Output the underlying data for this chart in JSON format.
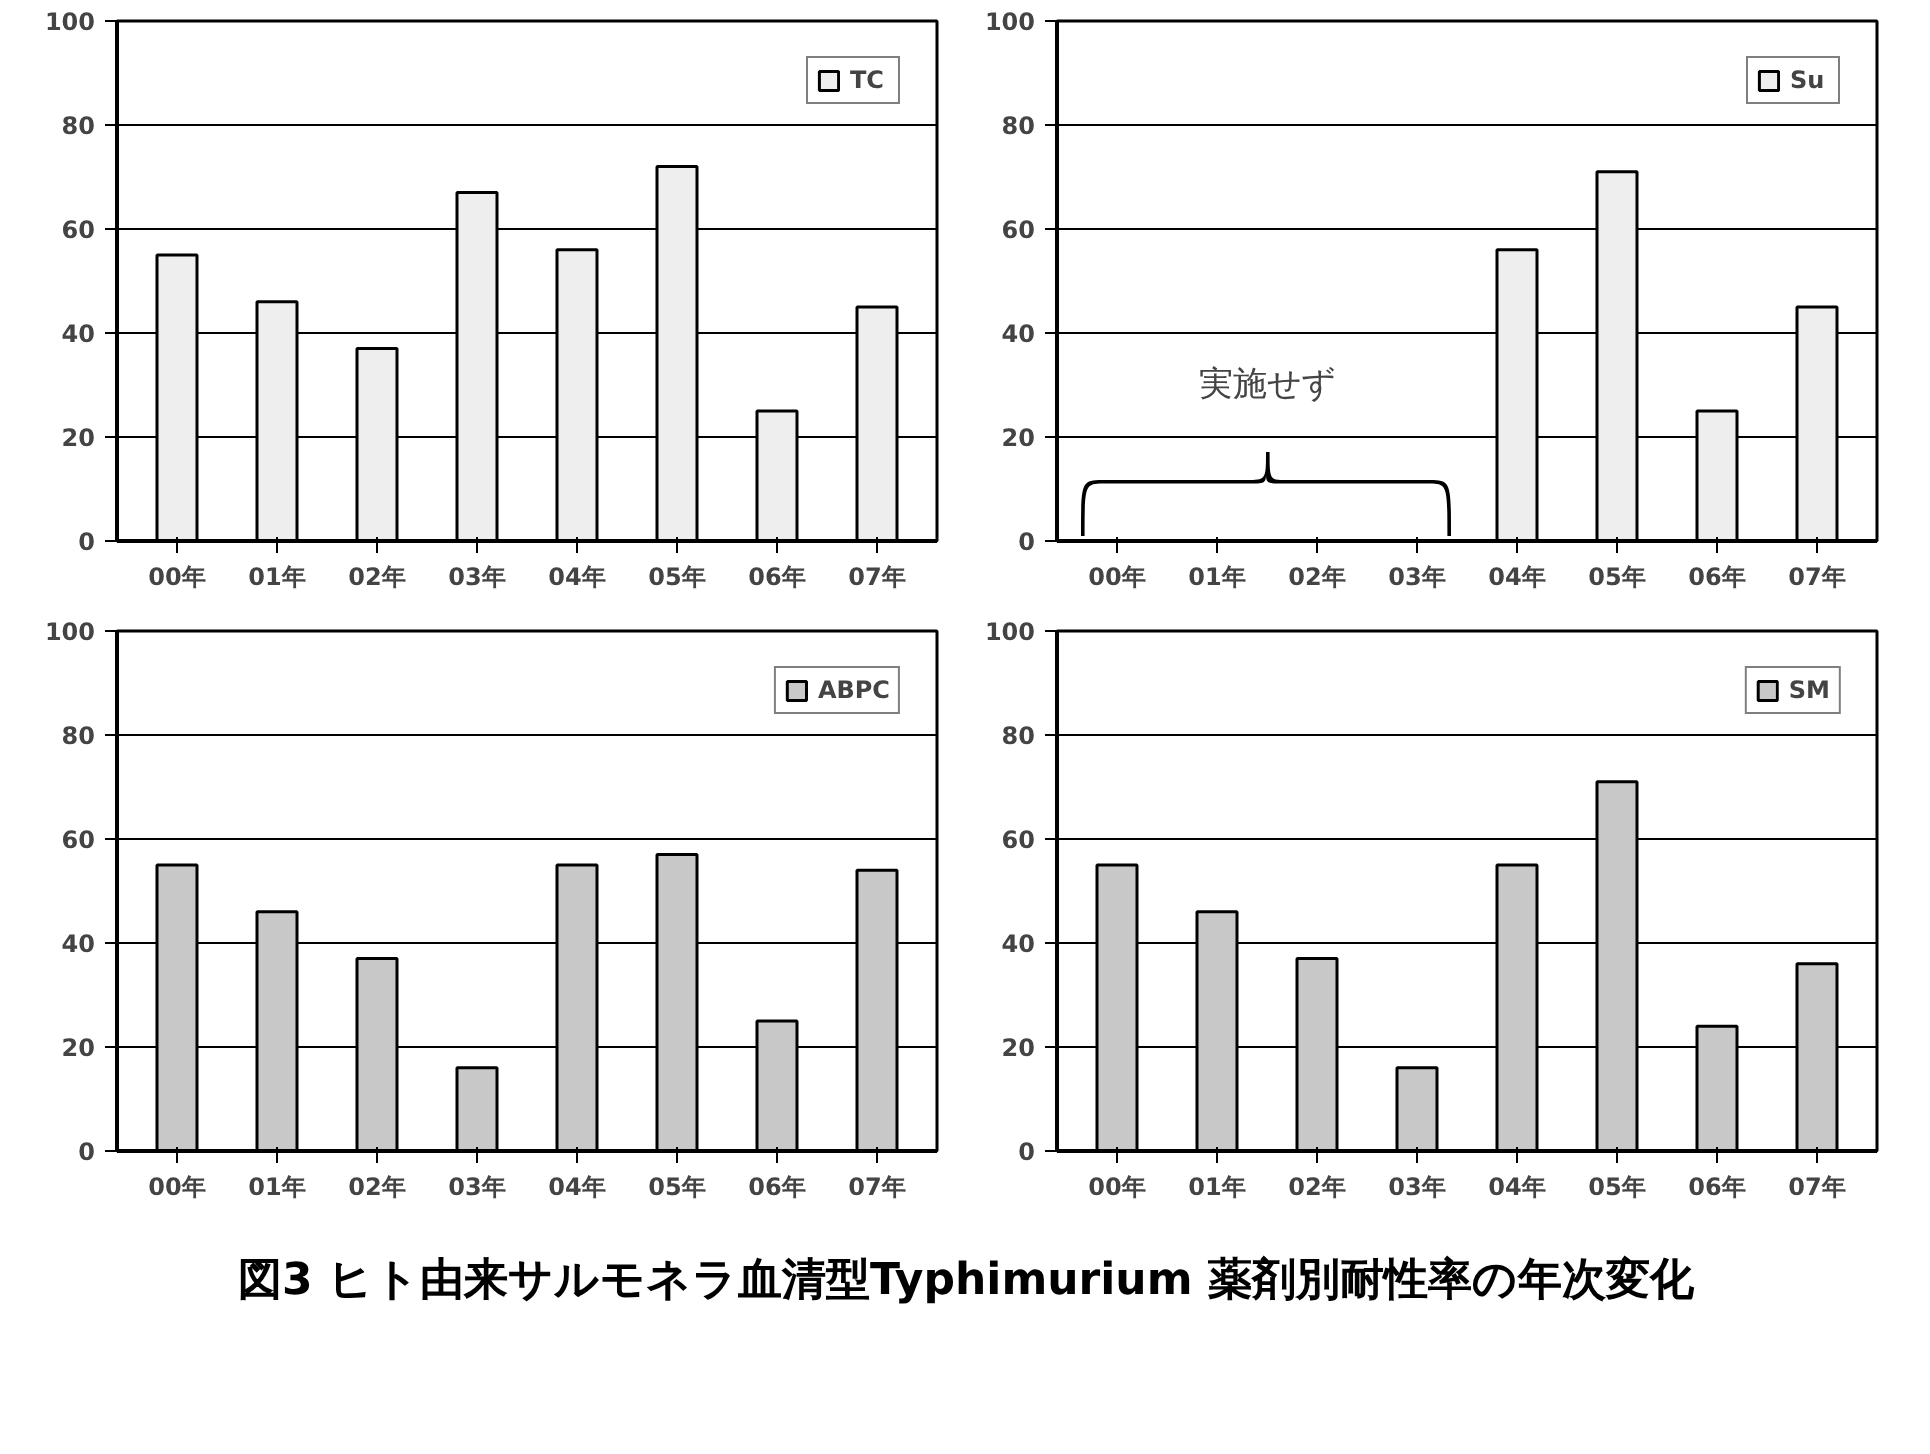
{
  "chart_data": [
    {
      "type": "bar",
      "categories": [
        "00年",
        "01年",
        "02年",
        "03年",
        "04年",
        "05年",
        "06年",
        "07年"
      ],
      "series": [
        {
          "name": "TC",
          "color": "#eeeeee",
          "values": [
            55,
            46,
            37,
            67,
            56,
            72,
            25,
            45
          ]
        }
      ],
      "ylim": [
        0,
        100
      ],
      "yticks": [
        0,
        20,
        40,
        60,
        80,
        100
      ],
      "grid": "y",
      "legend": "top right"
    },
    {
      "type": "bar",
      "categories": [
        "00年",
        "01年",
        "02年",
        "03年",
        "04年",
        "05年",
        "06年",
        "07年"
      ],
      "series": [
        {
          "name": "Su",
          "color": "#eeeeee",
          "values": [
            null,
            null,
            null,
            null,
            56,
            71,
            25,
            45
          ]
        }
      ],
      "ylim": [
        0,
        100
      ],
      "yticks": [
        0,
        20,
        40,
        60,
        80,
        100
      ],
      "grid": "y",
      "legend": "top right",
      "annotations": [
        "実施せず"
      ]
    },
    {
      "type": "bar",
      "categories": [
        "00年",
        "01年",
        "02年",
        "03年",
        "04年",
        "05年",
        "06年",
        "07年"
      ],
      "series": [
        {
          "name": "ABPC",
          "color": "#c8c8c8",
          "values": [
            55,
            46,
            37,
            16,
            55,
            57,
            25,
            54
          ]
        }
      ],
      "ylim": [
        0,
        100
      ],
      "yticks": [
        0,
        20,
        40,
        60,
        80,
        100
      ],
      "grid": "y",
      "legend": "top right"
    },
    {
      "type": "bar",
      "categories": [
        "00年",
        "01年",
        "02年",
        "03年",
        "04年",
        "05年",
        "06年",
        "07年"
      ],
      "series": [
        {
          "name": "SM",
          "color": "#c8c8c8",
          "values": [
            55,
            46,
            37,
            16,
            55,
            71,
            24,
            36
          ]
        }
      ],
      "ylim": [
        0,
        100
      ],
      "yticks": [
        0,
        20,
        40,
        60,
        80,
        100
      ],
      "grid": "y",
      "legend": "top right"
    },
    {
      "type": "other",
      "title": "図3 ヒト由来サルモネラ血清型Typhimurium 薬剤別耐性率の年次変化"
    }
  ]
}
